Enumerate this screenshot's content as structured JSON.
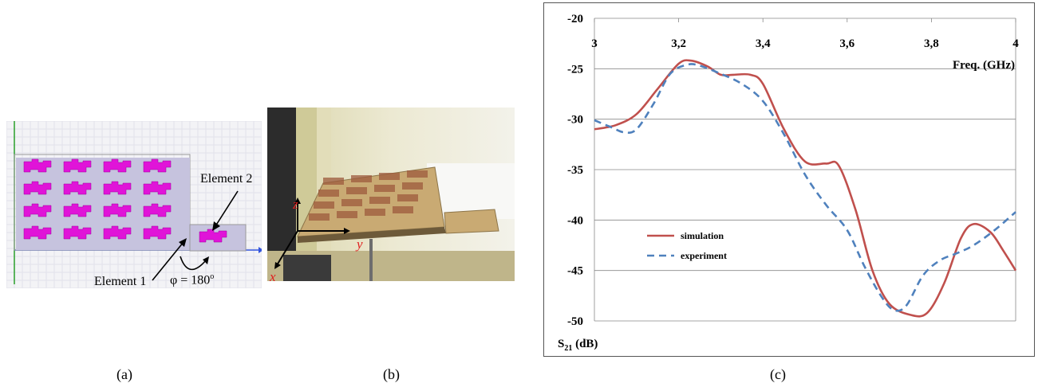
{
  "captions": {
    "a": "(a)",
    "b": "(b)",
    "c": "(c)"
  },
  "panel_a": {
    "element2_label": "Element 2",
    "element1_label": "Element 1",
    "phase_label": "φ = 180",
    "phase_unit": "o"
  },
  "panel_b": {
    "axis_x": "x",
    "axis_y": "y",
    "axis_z": "z"
  },
  "colors": {
    "simulation": "#c0504d",
    "experiment": "#4f81bd",
    "patch": "#e014d8",
    "substrate": "#c6c3de",
    "axis_red": "#e02020"
  },
  "chart_data": {
    "type": "line",
    "xlabel": "Freq. (GHz)",
    "ylabel_main": "S",
    "ylabel_sub": "21",
    "ylabel_unit": " (dB)",
    "xlim": [
      3,
      4
    ],
    "ylim": [
      -50,
      -20
    ],
    "x_ticks": [
      "3",
      "3,2",
      "3,4",
      "3,6",
      "3,8",
      "4"
    ],
    "x_tick_values": [
      3,
      3.2,
      3.4,
      3.6,
      3.8,
      4
    ],
    "y_ticks": [
      "-20",
      "-25",
      "-30",
      "-35",
      "-40",
      "-45",
      "-50"
    ],
    "y_tick_values": [
      -20,
      -25,
      -30,
      -35,
      -40,
      -45,
      -50
    ],
    "grid": "horizontal",
    "legend_position": "lower-left",
    "series": [
      {
        "name": "simulation",
        "style": "solid",
        "x": [
          3.0,
          3.05,
          3.1,
          3.15,
          3.2,
          3.23,
          3.27,
          3.3,
          3.33,
          3.37,
          3.4,
          3.45,
          3.5,
          3.55,
          3.58,
          3.62,
          3.66,
          3.7,
          3.75,
          3.79,
          3.83,
          3.87,
          3.9,
          3.94,
          3.97,
          4.0
        ],
        "y": [
          -31.0,
          -30.6,
          -29.5,
          -27.0,
          -24.5,
          -24.2,
          -24.8,
          -25.6,
          -25.6,
          -25.6,
          -26.5,
          -31.0,
          -34.2,
          -34.4,
          -34.6,
          -39.0,
          -45.0,
          -48.3,
          -49.4,
          -49.2,
          -46.3,
          -41.8,
          -40.4,
          -41.2,
          -43.0,
          -45.0
        ]
      },
      {
        "name": "experiment",
        "style": "dashed",
        "x": [
          3.0,
          3.04,
          3.07,
          3.1,
          3.14,
          3.18,
          3.22,
          3.25,
          3.3,
          3.35,
          3.4,
          3.45,
          3.5,
          3.55,
          3.6,
          3.64,
          3.68,
          3.71,
          3.74,
          3.78,
          3.82,
          3.86,
          3.9,
          3.95,
          4.0
        ],
        "y": [
          -30.1,
          -30.8,
          -31.3,
          -31.0,
          -28.5,
          -25.5,
          -24.6,
          -24.7,
          -25.5,
          -26.5,
          -28.2,
          -31.5,
          -35.5,
          -38.5,
          -41.0,
          -44.5,
          -47.5,
          -48.9,
          -48.5,
          -45.5,
          -44.0,
          -43.3,
          -42.5,
          -41.0,
          -39.2
        ]
      }
    ]
  }
}
